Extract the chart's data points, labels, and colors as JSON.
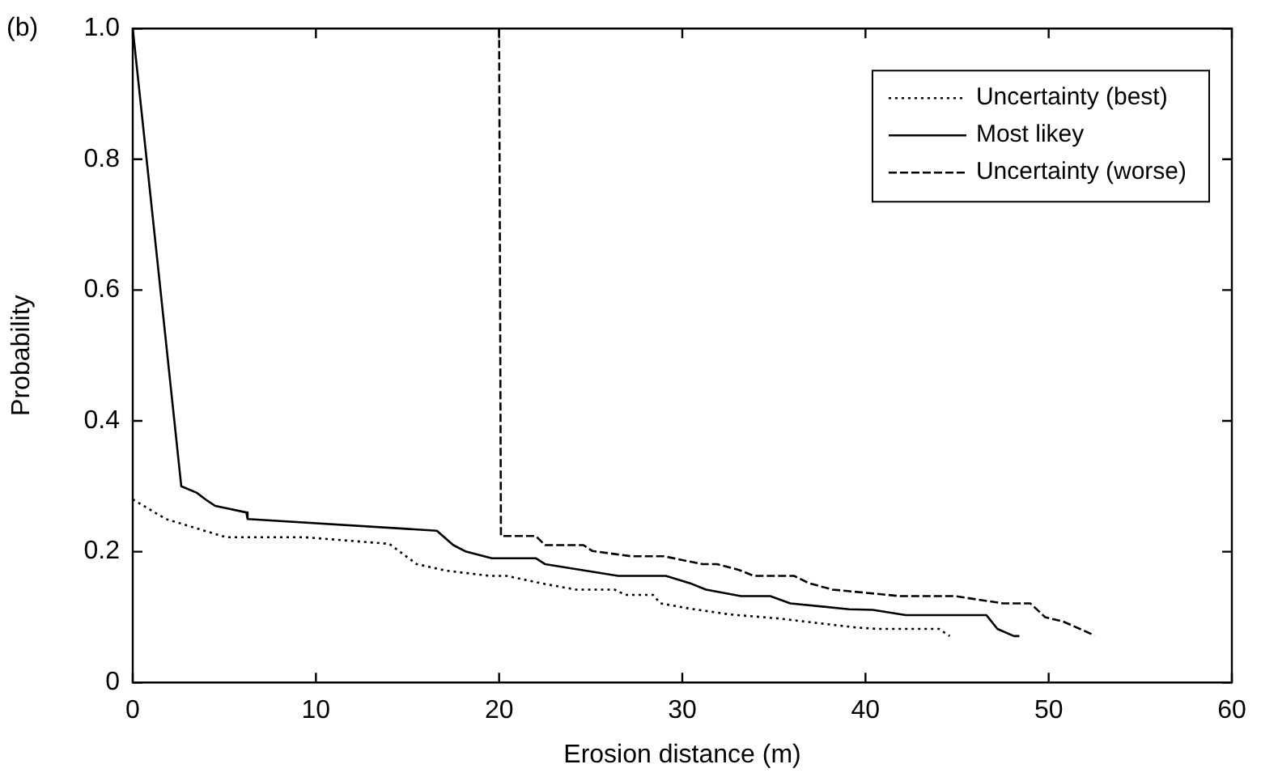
{
  "chart_data": {
    "type": "line",
    "xlabel": "Erosion distance (m)",
    "ylabel": "Probability",
    "annotations": [
      "(b)"
    ],
    "xlim": [
      0,
      60
    ],
    "xticks": [
      0,
      10,
      20,
      30,
      40,
      50,
      60
    ],
    "ylim": [
      0,
      1
    ],
    "yticks": [
      0,
      0.2,
      0.4,
      0.6,
      0.8,
      {
        "value": 1,
        "label": "1.0"
      }
    ],
    "grid": false,
    "legend": "top right",
    "marker": "none",
    "series": [
      {
        "name": "Uncertainty (best)",
        "color": "#000000",
        "line_style": "dotted",
        "x": [
          0,
          1.8,
          5.1,
          9.4,
          14.0,
          15.5,
          17.1,
          19.5,
          20.4,
          22.6,
          24.2,
          26.3,
          26.9,
          28.4,
          28.8,
          30.4,
          32.6,
          35.2,
          39.5,
          40.6,
          44.0,
          44.6
        ],
        "values": [
          0.28,
          0.25,
          0.222,
          0.222,
          0.212,
          0.181,
          0.171,
          0.163,
          0.163,
          0.15,
          0.142,
          0.142,
          0.134,
          0.134,
          0.121,
          0.113,
          0.104,
          0.098,
          0.084,
          0.082,
          0.082,
          0.071
        ]
      },
      {
        "name": "Most likey",
        "color": "#000000",
        "line_style": "solid",
        "x": [
          0,
          2.65,
          3.5,
          3.97,
          4.5,
          6.2,
          6.27,
          16.6,
          17.5,
          18.2,
          19.6,
          22.0,
          22.5,
          26.5,
          29.1,
          30.4,
          31.3,
          33.2,
          34.8,
          35.9,
          39.1,
          40.4,
          42.2,
          46.6,
          47.2,
          48.1,
          48.4
        ],
        "values": [
          1,
          0.3,
          0.29,
          0.28,
          0.27,
          0.26,
          0.25,
          0.232,
          0.21,
          0.2,
          0.19,
          0.19,
          0.181,
          0.163,
          0.163,
          0.152,
          0.142,
          0.132,
          0.132,
          0.121,
          0.112,
          0.111,
          0.103,
          0.103,
          0.082,
          0.071,
          0.071
        ]
      },
      {
        "name": "Uncertainty (worse)",
        "color": "#000000",
        "line_style": "dashed",
        "x": [
          20,
          20.1,
          20.35,
          22.0,
          22.5,
          24.6,
          25.1,
          27.2,
          29.0,
          31.1,
          31.9,
          33.1,
          33.9,
          36.1,
          36.9,
          38.2,
          41.9,
          44.9,
          47.5,
          49.0,
          49.8,
          50.8,
          51.7,
          52.5
        ],
        "values": [
          1,
          0.224,
          0.224,
          0.224,
          0.21,
          0.21,
          0.201,
          0.193,
          0.193,
          0.181,
          0.181,
          0.172,
          0.163,
          0.163,
          0.152,
          0.142,
          0.132,
          0.132,
          0.121,
          0.121,
          0.1,
          0.093,
          0.082,
          0.072
        ]
      }
    ]
  }
}
